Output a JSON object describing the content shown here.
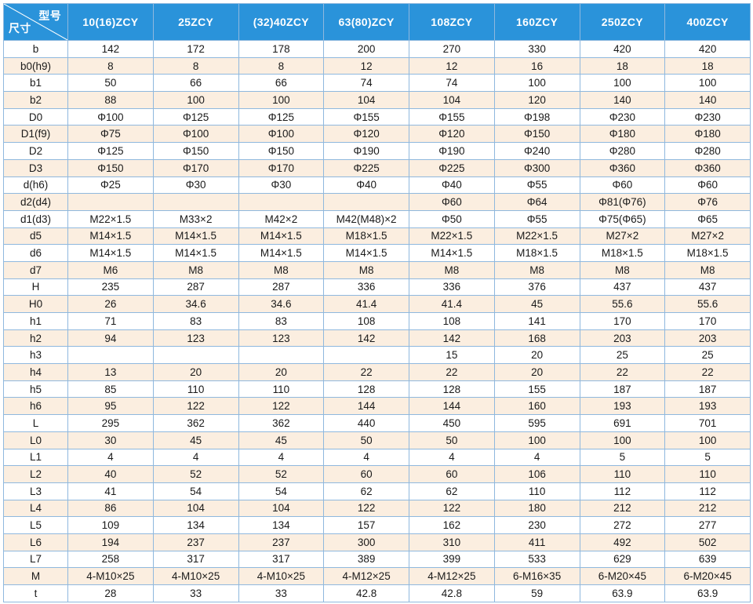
{
  "header": {
    "corner_top": "型号",
    "corner_bottom": "尺寸",
    "models": [
      "10(16)ZCY",
      "25ZCY",
      "(32)40ZCY",
      "63(80)ZCY",
      "108ZCY",
      "160ZCY",
      "250ZCY",
      "400ZCY"
    ]
  },
  "rows": [
    {
      "label": "b",
      "values": [
        "142",
        "172",
        "178",
        "200",
        "270",
        "330",
        "420",
        "420"
      ]
    },
    {
      "label": "b0(h9)",
      "values": [
        "8",
        "8",
        "8",
        "12",
        "12",
        "16",
        "18",
        "18"
      ]
    },
    {
      "label": "b1",
      "values": [
        "50",
        "66",
        "66",
        "74",
        "74",
        "100",
        "100",
        "100"
      ]
    },
    {
      "label": "b2",
      "values": [
        "88",
        "100",
        "100",
        "104",
        "104",
        "120",
        "140",
        "140"
      ]
    },
    {
      "label": "D0",
      "values": [
        "Φ100",
        "Φ125",
        "Φ125",
        "Φ155",
        "Φ155",
        "Φ198",
        "Φ230",
        "Φ230"
      ]
    },
    {
      "label": "D1(f9)",
      "values": [
        "Φ75",
        "Φ100",
        "Φ100",
        "Φ120",
        "Φ120",
        "Φ150",
        "Φ180",
        "Φ180"
      ]
    },
    {
      "label": "D2",
      "values": [
        "Φ125",
        "Φ150",
        "Φ150",
        "Φ190",
        "Φ190",
        "Φ240",
        "Φ280",
        "Φ280"
      ]
    },
    {
      "label": "D3",
      "values": [
        "Φ150",
        "Φ170",
        "Φ170",
        "Φ225",
        "Φ225",
        "Φ300",
        "Φ360",
        "Φ360"
      ]
    },
    {
      "label": "d(h6)",
      "values": [
        "Φ25",
        "Φ30",
        "Φ30",
        "Φ40",
        "Φ40",
        "Φ55",
        "Φ60",
        "Φ60"
      ]
    },
    {
      "label": "d2(d4)",
      "values": [
        "",
        "",
        "",
        "",
        "Φ60",
        "Φ64",
        "Φ81(Φ76)",
        "Φ76"
      ]
    },
    {
      "label": "d1(d3)",
      "values": [
        "M22×1.5",
        "M33×2",
        "M42×2",
        "M42(M48)×2",
        "Φ50",
        "Φ55",
        "Φ75(Φ65)",
        "Φ65"
      ]
    },
    {
      "label": "d5",
      "values": [
        "M14×1.5",
        "M14×1.5",
        "M14×1.5",
        "M18×1.5",
        "M22×1.5",
        "M22×1.5",
        "M27×2",
        "M27×2"
      ]
    },
    {
      "label": "d6",
      "values": [
        "M14×1.5",
        "M14×1.5",
        "M14×1.5",
        "M14×1.5",
        "M14×1.5",
        "M18×1.5",
        "M18×1.5",
        "M18×1.5"
      ]
    },
    {
      "label": "d7",
      "values": [
        "M6",
        "M8",
        "M8",
        "M8",
        "M8",
        "M8",
        "M8",
        "M8"
      ]
    },
    {
      "label": "H",
      "values": [
        "235",
        "287",
        "287",
        "336",
        "336",
        "376",
        "437",
        "437"
      ]
    },
    {
      "label": "H0",
      "values": [
        "26",
        "34.6",
        "34.6",
        "41.4",
        "41.4",
        "45",
        "55.6",
        "55.6"
      ]
    },
    {
      "label": "h1",
      "values": [
        "71",
        "83",
        "83",
        "108",
        "108",
        "141",
        "170",
        "170"
      ]
    },
    {
      "label": "h2",
      "values": [
        "94",
        "123",
        "123",
        "142",
        "142",
        "168",
        "203",
        "203"
      ]
    },
    {
      "label": "h3",
      "values": [
        "",
        "",
        "",
        "",
        "15",
        "20",
        "25",
        "25"
      ]
    },
    {
      "label": "h4",
      "values": [
        "13",
        "20",
        "20",
        "22",
        "22",
        "20",
        "22",
        "22"
      ]
    },
    {
      "label": "h5",
      "values": [
        "85",
        "110",
        "110",
        "128",
        "128",
        "155",
        "187",
        "187"
      ]
    },
    {
      "label": "h6",
      "values": [
        "95",
        "122",
        "122",
        "144",
        "144",
        "160",
        "193",
        "193"
      ]
    },
    {
      "label": "L",
      "values": [
        "295",
        "362",
        "362",
        "440",
        "450",
        "595",
        "691",
        "701"
      ]
    },
    {
      "label": "L0",
      "values": [
        "30",
        "45",
        "45",
        "50",
        "50",
        "100",
        "100",
        "100"
      ]
    },
    {
      "label": "L1",
      "values": [
        "4",
        "4",
        "4",
        "4",
        "4",
        "4",
        "5",
        "5"
      ]
    },
    {
      "label": "L2",
      "values": [
        "40",
        "52",
        "52",
        "60",
        "60",
        "106",
        "110",
        "110"
      ]
    },
    {
      "label": "L3",
      "values": [
        "41",
        "54",
        "54",
        "62",
        "62",
        "110",
        "112",
        "112"
      ]
    },
    {
      "label": "L4",
      "values": [
        "86",
        "104",
        "104",
        "122",
        "122",
        "180",
        "212",
        "212"
      ]
    },
    {
      "label": "L5",
      "values": [
        "109",
        "134",
        "134",
        "157",
        "162",
        "230",
        "272",
        "277"
      ]
    },
    {
      "label": "L6",
      "values": [
        "194",
        "237",
        "237",
        "300",
        "310",
        "411",
        "492",
        "502"
      ]
    },
    {
      "label": "L7",
      "values": [
        "258",
        "317",
        "317",
        "389",
        "399",
        "533",
        "629",
        "639"
      ]
    },
    {
      "label": "M",
      "values": [
        "4-M10×25",
        "4-M10×25",
        "4-M10×25",
        "4-M12×25",
        "4-M12×25",
        "6-M16×35",
        "6-M20×45",
        "6-M20×45"
      ]
    },
    {
      "label": "t",
      "values": [
        "28",
        "33",
        "33",
        "42.8",
        "42.8",
        "59",
        "63.9",
        "63.9"
      ]
    }
  ]
}
